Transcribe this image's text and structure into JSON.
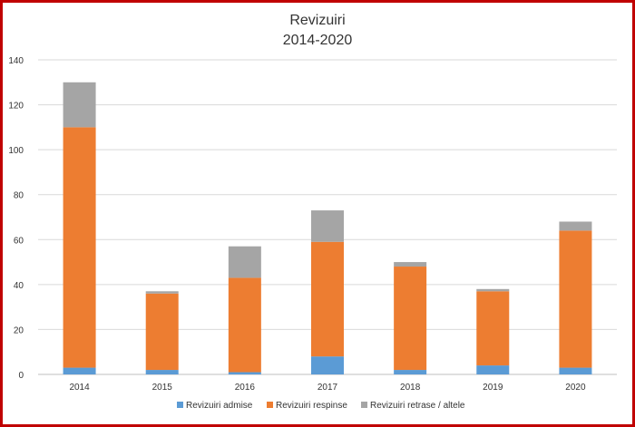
{
  "chart_data": {
    "type": "bar",
    "stacked": true,
    "title": "Revizuiri",
    "subtitle": "2014-2020",
    "xlabel": "",
    "ylabel": "",
    "ylim": [
      0,
      140
    ],
    "yticks": [
      0,
      20,
      40,
      60,
      80,
      100,
      120,
      140
    ],
    "grid": true,
    "legend_position": "bottom",
    "categories": [
      "2014",
      "2015",
      "2016",
      "2017",
      "2018",
      "2019",
      "2020"
    ],
    "series": [
      {
        "name": "Revizuiri admise",
        "color": "#5b9bd5",
        "values": [
          3,
          2,
          1,
          8,
          2,
          4,
          3
        ]
      },
      {
        "name": "Revizuiri respinse",
        "color": "#ed7d31",
        "values": [
          107,
          34,
          42,
          51,
          46,
          33,
          61
        ]
      },
      {
        "name": "Revizuiri retrase / altele",
        "color": "#a5a5a5",
        "values": [
          20,
          1,
          14,
          14,
          2,
          1,
          4
        ]
      }
    ]
  }
}
